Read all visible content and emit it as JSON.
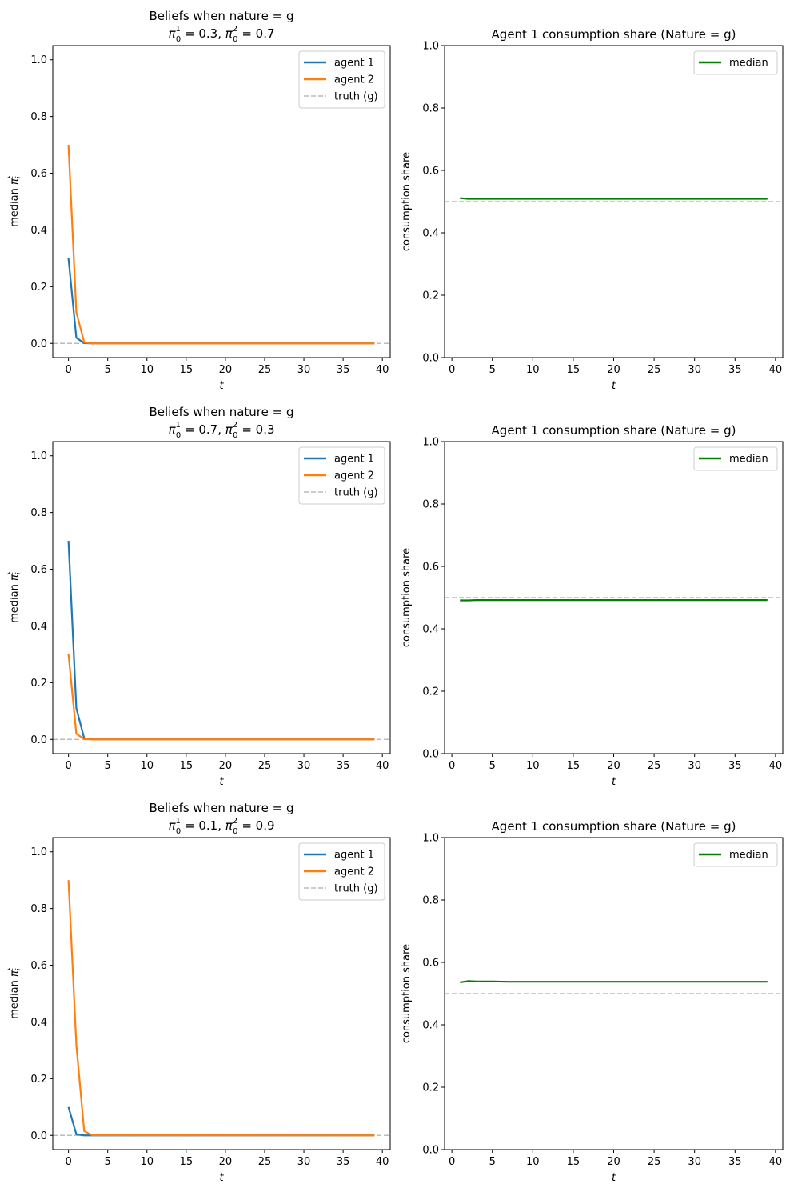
{
  "figure": {
    "panels": [
      {
        "kind": "beliefs",
        "title_line1": "Beliefs when nature = g",
        "title_line2": [
          "0.3",
          "0.7"
        ]
      },
      {
        "kind": "share",
        "title": "Agent 1 consumption share (Nature = g)"
      },
      {
        "kind": "beliefs",
        "title_line1": "Beliefs when nature = g",
        "title_line2": [
          "0.7",
          "0.3"
        ]
      },
      {
        "kind": "share",
        "title": "Agent 1 consumption share (Nature = g)"
      },
      {
        "kind": "beliefs",
        "title_line1": "Beliefs when nature = g",
        "title_line2": [
          "0.1",
          "0.9"
        ]
      },
      {
        "kind": "share",
        "title": "Agent 1 consumption share (Nature = g)"
      }
    ]
  },
  "chart_data": [
    {
      "type": "line",
      "title": "Beliefs when nature = g / π_0^1 = 0.3, π_0^2 = 0.7",
      "xlabel": "t",
      "ylabel": "median π_i^t",
      "xlim": [
        -2,
        41
      ],
      "ylim": [
        -0.05,
        1.05
      ],
      "xticks": [
        0,
        5,
        10,
        15,
        20,
        25,
        30,
        35,
        40
      ],
      "yticks": [
        0.0,
        0.2,
        0.4,
        0.6,
        0.8,
        1.0
      ],
      "legend_position": "top-right",
      "series": [
        {
          "name": "agent 1",
          "color": "#1f77b4",
          "x": [
            0,
            1,
            2,
            3,
            39
          ],
          "y": [
            0.3,
            0.02,
            0.001,
            0.0,
            0.0
          ]
        },
        {
          "name": "agent 2",
          "color": "#ff7f0e",
          "x": [
            0,
            1,
            2,
            3,
            39
          ],
          "y": [
            0.7,
            0.11,
            0.004,
            0.0,
            0.0
          ]
        }
      ],
      "hlines": [
        {
          "name": "truth (g)",
          "y": 0.0,
          "color": "#bbbbbb",
          "style": "dashed"
        }
      ]
    },
    {
      "type": "line",
      "title": "Agent 1 consumption share (Nature = g)",
      "xlabel": "t",
      "ylabel": "consumption share",
      "xlim": [
        -0.9,
        40.9
      ],
      "ylim": [
        0.0,
        1.0
      ],
      "xticks": [
        0,
        5,
        10,
        15,
        20,
        25,
        30,
        35,
        40
      ],
      "yticks": [
        0.0,
        0.2,
        0.4,
        0.6,
        0.8,
        1.0
      ],
      "legend_position": "top-right",
      "series": [
        {
          "name": "median",
          "color": "#008000",
          "x": [
            1,
            2,
            3,
            39
          ],
          "y": [
            0.511,
            0.509,
            0.509,
            0.509
          ]
        }
      ],
      "hlines": [
        {
          "y": 0.5,
          "color": "#bbbbbb",
          "style": "dashed"
        }
      ]
    },
    {
      "type": "line",
      "title": "Beliefs when nature = g / π_0^1 = 0.7, π_0^2 = 0.3",
      "xlabel": "t",
      "ylabel": "median π_i^t",
      "xlim": [
        -2,
        41
      ],
      "ylim": [
        -0.05,
        1.05
      ],
      "xticks": [
        0,
        5,
        10,
        15,
        20,
        25,
        30,
        35,
        40
      ],
      "yticks": [
        0.0,
        0.2,
        0.4,
        0.6,
        0.8,
        1.0
      ],
      "legend_position": "top-right",
      "series": [
        {
          "name": "agent 1",
          "color": "#1f77b4",
          "x": [
            0,
            1,
            2,
            3,
            39
          ],
          "y": [
            0.7,
            0.11,
            0.004,
            0.0,
            0.0
          ]
        },
        {
          "name": "agent 2",
          "color": "#ff7f0e",
          "x": [
            0,
            1,
            2,
            3,
            39
          ],
          "y": [
            0.3,
            0.02,
            0.001,
            0.0,
            0.0
          ]
        }
      ],
      "hlines": [
        {
          "name": "truth (g)",
          "y": 0.0,
          "color": "#bbbbbb",
          "style": "dashed"
        }
      ]
    },
    {
      "type": "line",
      "title": "Agent 1 consumption share (Nature = g)",
      "xlabel": "t",
      "ylabel": "consumption share",
      "xlim": [
        -0.9,
        40.9
      ],
      "ylim": [
        0.0,
        1.0
      ],
      "xticks": [
        0,
        5,
        10,
        15,
        20,
        25,
        30,
        35,
        40
      ],
      "yticks": [
        0.0,
        0.2,
        0.4,
        0.6,
        0.8,
        1.0
      ],
      "legend_position": "top-right",
      "series": [
        {
          "name": "median",
          "color": "#008000",
          "x": [
            1,
            2,
            3,
            39
          ],
          "y": [
            0.491,
            0.491,
            0.492,
            0.492
          ]
        }
      ],
      "hlines": [
        {
          "y": 0.5,
          "color": "#bbbbbb",
          "style": "dashed"
        }
      ]
    },
    {
      "type": "line",
      "title": "Beliefs when nature = g / π_0^1 = 0.1, π_0^2 = 0.9",
      "xlabel": "t",
      "ylabel": "median π_i^t",
      "xlim": [
        -2,
        41
      ],
      "ylim": [
        -0.05,
        1.05
      ],
      "xticks": [
        0,
        5,
        10,
        15,
        20,
        25,
        30,
        35,
        40
      ],
      "yticks": [
        0.0,
        0.2,
        0.4,
        0.6,
        0.8,
        1.0
      ],
      "legend_position": "top-right",
      "series": [
        {
          "name": "agent 1",
          "color": "#1f77b4",
          "x": [
            0,
            1,
            2,
            3,
            39
          ],
          "y": [
            0.1,
            0.004,
            0.0,
            0.0,
            0.0
          ]
        },
        {
          "name": "agent 2",
          "color": "#ff7f0e",
          "x": [
            0,
            1,
            2,
            3,
            39
          ],
          "y": [
            0.9,
            0.32,
            0.015,
            0.001,
            0.0
          ]
        }
      ],
      "hlines": [
        {
          "name": "truth (g)",
          "y": 0.0,
          "color": "#bbbbbb",
          "style": "dashed"
        }
      ]
    },
    {
      "type": "line",
      "title": "Agent 1 consumption share (Nature = g)",
      "xlabel": "t",
      "ylabel": "consumption share",
      "xlim": [
        -0.9,
        40.9
      ],
      "ylim": [
        0.0,
        1.0
      ],
      "xticks": [
        0,
        5,
        10,
        15,
        20,
        25,
        30,
        35,
        40
      ],
      "yticks": [
        0.0,
        0.2,
        0.4,
        0.6,
        0.8,
        1.0
      ],
      "legend_position": "top-right",
      "series": [
        {
          "name": "median",
          "color": "#008000",
          "x": [
            1,
            2,
            3,
            5,
            7,
            39
          ],
          "y": [
            0.536,
            0.54,
            0.539,
            0.539,
            0.538,
            0.538
          ]
        }
      ],
      "hlines": [
        {
          "y": 0.5,
          "color": "#bbbbbb",
          "style": "dashed"
        }
      ]
    }
  ]
}
